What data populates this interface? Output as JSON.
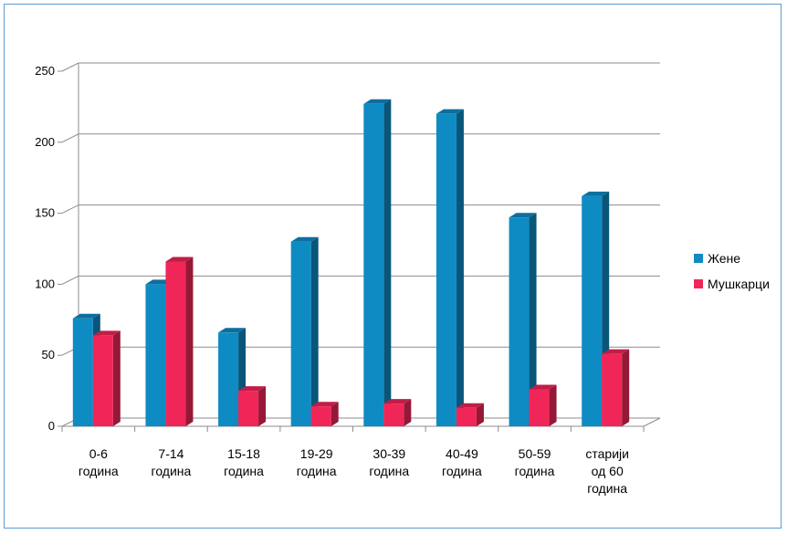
{
  "chart_data": {
    "type": "bar",
    "categories": [
      [
        "0-6",
        "година"
      ],
      [
        "7-14",
        "година"
      ],
      [
        "15-18",
        "година"
      ],
      [
        "19-29",
        "година"
      ],
      [
        "30-39",
        "година"
      ],
      [
        "40-49",
        "година"
      ],
      [
        "50-59",
        "година"
      ],
      [
        "старији",
        "од 60",
        "година"
      ]
    ],
    "series": [
      {
        "name": "Жене",
        "color": "#0f8bc4",
        "values": [
          76,
          100,
          66,
          130,
          227,
          220,
          147,
          162
        ]
      },
      {
        "name": "Мушкарци",
        "color": "#f02659",
        "values": [
          64,
          116,
          25,
          14,
          16,
          13,
          26,
          51
        ]
      }
    ],
    "yticks": [
      "0",
      "50",
      "100",
      "150",
      "200",
      "250"
    ],
    "ylim": [
      0,
      250
    ],
    "grid": true,
    "legend_position": "right"
  }
}
